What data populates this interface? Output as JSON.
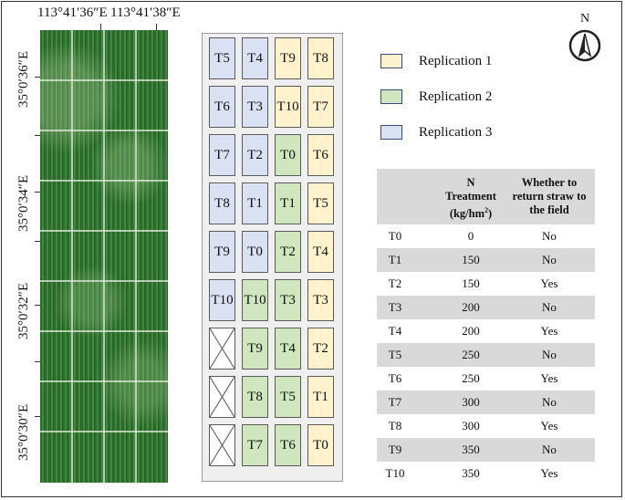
{
  "coords": {
    "top": [
      "113°41′36″E",
      "113°41′38″E"
    ],
    "left": [
      "35°0′36″E",
      "35°0′34″E",
      "35°0′32″E",
      "35°0′30″E"
    ]
  },
  "north_label": "N",
  "plots": {
    "columns": [
      [
        "T5",
        "T6",
        "T7",
        "T8",
        "T9",
        "T10",
        "",
        "",
        ""
      ],
      [
        "T4",
        "T3",
        "T2",
        "T1",
        "T0",
        "T10",
        "T9",
        "T8",
        "T7"
      ],
      [
        "T9",
        "T10",
        "T0",
        "T1",
        "T2",
        "T3",
        "T4",
        "T5",
        "T6"
      ],
      [
        "T8",
        "T7",
        "T6",
        "T5",
        "T4",
        "T3",
        "T2",
        "T1",
        "T0"
      ]
    ],
    "replication": [
      [
        3,
        3,
        3,
        3,
        3,
        3,
        0,
        0,
        0
      ],
      [
        3,
        3,
        3,
        3,
        3,
        2,
        2,
        2,
        2
      ],
      [
        1,
        1,
        2,
        2,
        2,
        2,
        2,
        2,
        2
      ],
      [
        1,
        1,
        1,
        1,
        1,
        1,
        1,
        1,
        1
      ]
    ]
  },
  "legend": [
    {
      "label": "Replication 1",
      "color": "#fff2cc"
    },
    {
      "label": "Replication 2",
      "color": "#cfe6bf"
    },
    {
      "label": "Replication 3",
      "color": "#d9e1f2"
    }
  ],
  "table": {
    "headers": [
      "",
      "N Treatment (kg/hm²)",
      "Whether to return straw to the field"
    ],
    "rows": [
      [
        "T0",
        "0",
        "No"
      ],
      [
        "T1",
        "150",
        "No"
      ],
      [
        "T2",
        "150",
        "Yes"
      ],
      [
        "T3",
        "200",
        "No"
      ],
      [
        "T4",
        "200",
        "Yes"
      ],
      [
        "T5",
        "250",
        "No"
      ],
      [
        "T6",
        "250",
        "Yes"
      ],
      [
        "T7",
        "300",
        "No"
      ],
      [
        "T8",
        "300",
        "Yes"
      ],
      [
        "T9",
        "350",
        "No"
      ],
      [
        "T10",
        "350",
        "Yes"
      ]
    ]
  }
}
